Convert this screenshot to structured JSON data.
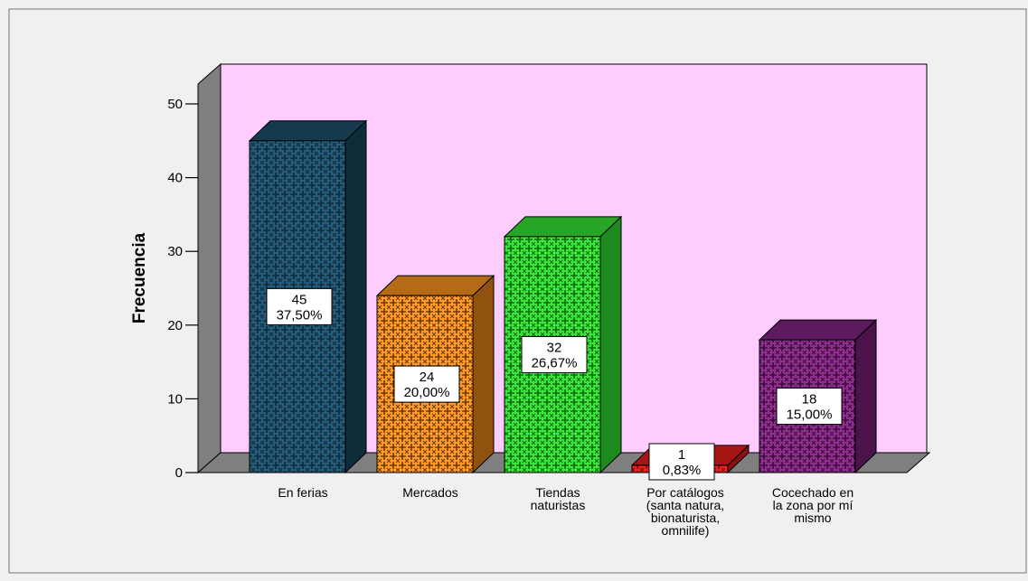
{
  "chart_data": {
    "type": "bar",
    "three_d": true,
    "categories": [
      [
        "En ferias"
      ],
      [
        "Mercados"
      ],
      [
        "Tiendas",
        "naturistas"
      ],
      [
        "Por catálogos",
        "(santa natura,",
        "bionaturista,",
        "omnilife)"
      ],
      [
        "Cocechado en",
        "la zona por mí",
        "mismo"
      ]
    ],
    "values": [
      45,
      24,
      32,
      1,
      18
    ],
    "value_labels": [
      "45",
      "24",
      "32",
      "1",
      "18"
    ],
    "percent_labels": [
      "37,50%",
      "20,00%",
      "26,67%",
      "0,83%",
      "15,00%"
    ],
    "ylabel": "Frecuencia",
    "xlabel": "",
    "ylim": [
      0,
      50
    ],
    "yticks": [
      0,
      10,
      20,
      30,
      40,
      50
    ],
    "grid": false,
    "legend": "none",
    "colors": {
      "front": [
        "#255a78",
        "#ff9a2a",
        "#3de33d",
        "#ee2222",
        "#8e2f8e"
      ],
      "top": [
        "#153a4d",
        "#b56a15",
        "#27a527",
        "#a81515",
        "#5e1a5e"
      ],
      "side": [
        "#0f2c3b",
        "#8f520f",
        "#1d8a1d",
        "#8a1010",
        "#4a134a"
      ],
      "pattern_dark": [
        "#0f2b3a",
        "#6b3a05",
        "#0c6a0c",
        "#7a0a0a",
        "#3b0a3b"
      ],
      "plot_back": "#ffccff",
      "plot_left": "#7f7f7f",
      "plot_floor": "#7f7f7f",
      "page_background": "#f0f0f0"
    }
  }
}
